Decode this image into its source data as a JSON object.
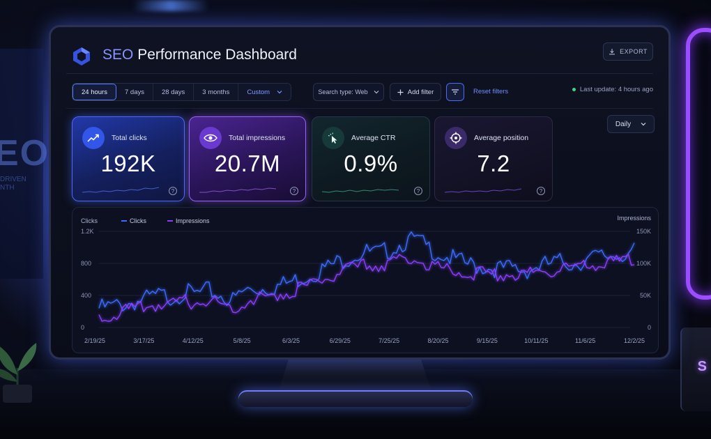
{
  "dashboard": {
    "title_accent": "SEO",
    "title_rest": " Performance Dashboard",
    "export_label": "EXPORT"
  },
  "filters": {
    "ranges": [
      "24 hours",
      "7 days",
      "28 days",
      "3 months",
      "Custom"
    ],
    "active_range": "24 hours",
    "search_type": "Search type: Web",
    "add_filter": "Add filter",
    "reset": "Reset filters",
    "last_update": "Last update: 4 hours ago"
  },
  "granularity": "Daily",
  "cards": [
    {
      "label": "Total clicks",
      "value": "192K",
      "icon": "trend-up-icon"
    },
    {
      "label": "Total impressions",
      "value": "20.7M",
      "icon": "eye-icon"
    },
    {
      "label": "Average CTR",
      "value": "0.9%",
      "icon": "cursor-click-icon"
    },
    {
      "label": "Average position",
      "value": "7.2",
      "icon": "target-icon"
    }
  ],
  "background": {
    "poster_text": "EO",
    "poster_sub_1": "DRIVEN",
    "poster_sub_2": "NTH",
    "cup_letter": "S"
  },
  "colors": {
    "clicks": "#3d6bff",
    "impressions": "#8d3dff",
    "accent": "#6f8dff"
  },
  "chart_data": {
    "type": "line",
    "left_axis_label": "Clicks",
    "right_axis_label": "Impressions",
    "legend": [
      "Clicks",
      "Impressions"
    ],
    "x_labels": [
      "2/19/25",
      "3/17/25",
      "4/12/25",
      "5/8/25",
      "6/3/25",
      "6/29/25",
      "7/25/25",
      "8/20/25",
      "9/15/25",
      "10/11/25",
      "11/6/25",
      "12/2/25"
    ],
    "y_left_ticks": [
      "0",
      "400",
      "800",
      "1.2K"
    ],
    "y_right_ticks": [
      "0",
      "50K",
      "100K",
      "150K"
    ],
    "ylim_left": [
      0,
      1200
    ],
    "ylim_right": [
      0,
      150000
    ],
    "series": [
      {
        "name": "Clicks",
        "axis": "left",
        "values": [
          300,
          320,
          350,
          380,
          420,
          460,
          440,
          500,
          470,
          520,
          460,
          400,
          520,
          540,
          560,
          590,
          640,
          700,
          760,
          830,
          900,
          960,
          1000,
          980,
          1040,
          1120,
          1160,
          1060,
          980,
          920,
          860,
          830,
          810,
          790,
          800,
          770,
          820,
          850,
          880,
          860,
          900,
          940,
          960,
          980,
          1000
        ]
      },
      {
        "name": "Impressions",
        "axis": "right",
        "values": [
          20000,
          26000,
          30000,
          34000,
          38000,
          42000,
          40000,
          46000,
          44000,
          48000,
          42000,
          36000,
          46000,
          50000,
          54000,
          58000,
          63000,
          70000,
          76000,
          84000,
          92000,
          98000,
          104000,
          102000,
          108000,
          112000,
          114000,
          104000,
          98000,
          95000,
          92000,
          90000,
          89000,
          88000,
          90000,
          89000,
          92000,
          95000,
          98000,
          97000,
          100000,
          104000,
          106000,
          110000,
          112000
        ]
      }
    ]
  }
}
